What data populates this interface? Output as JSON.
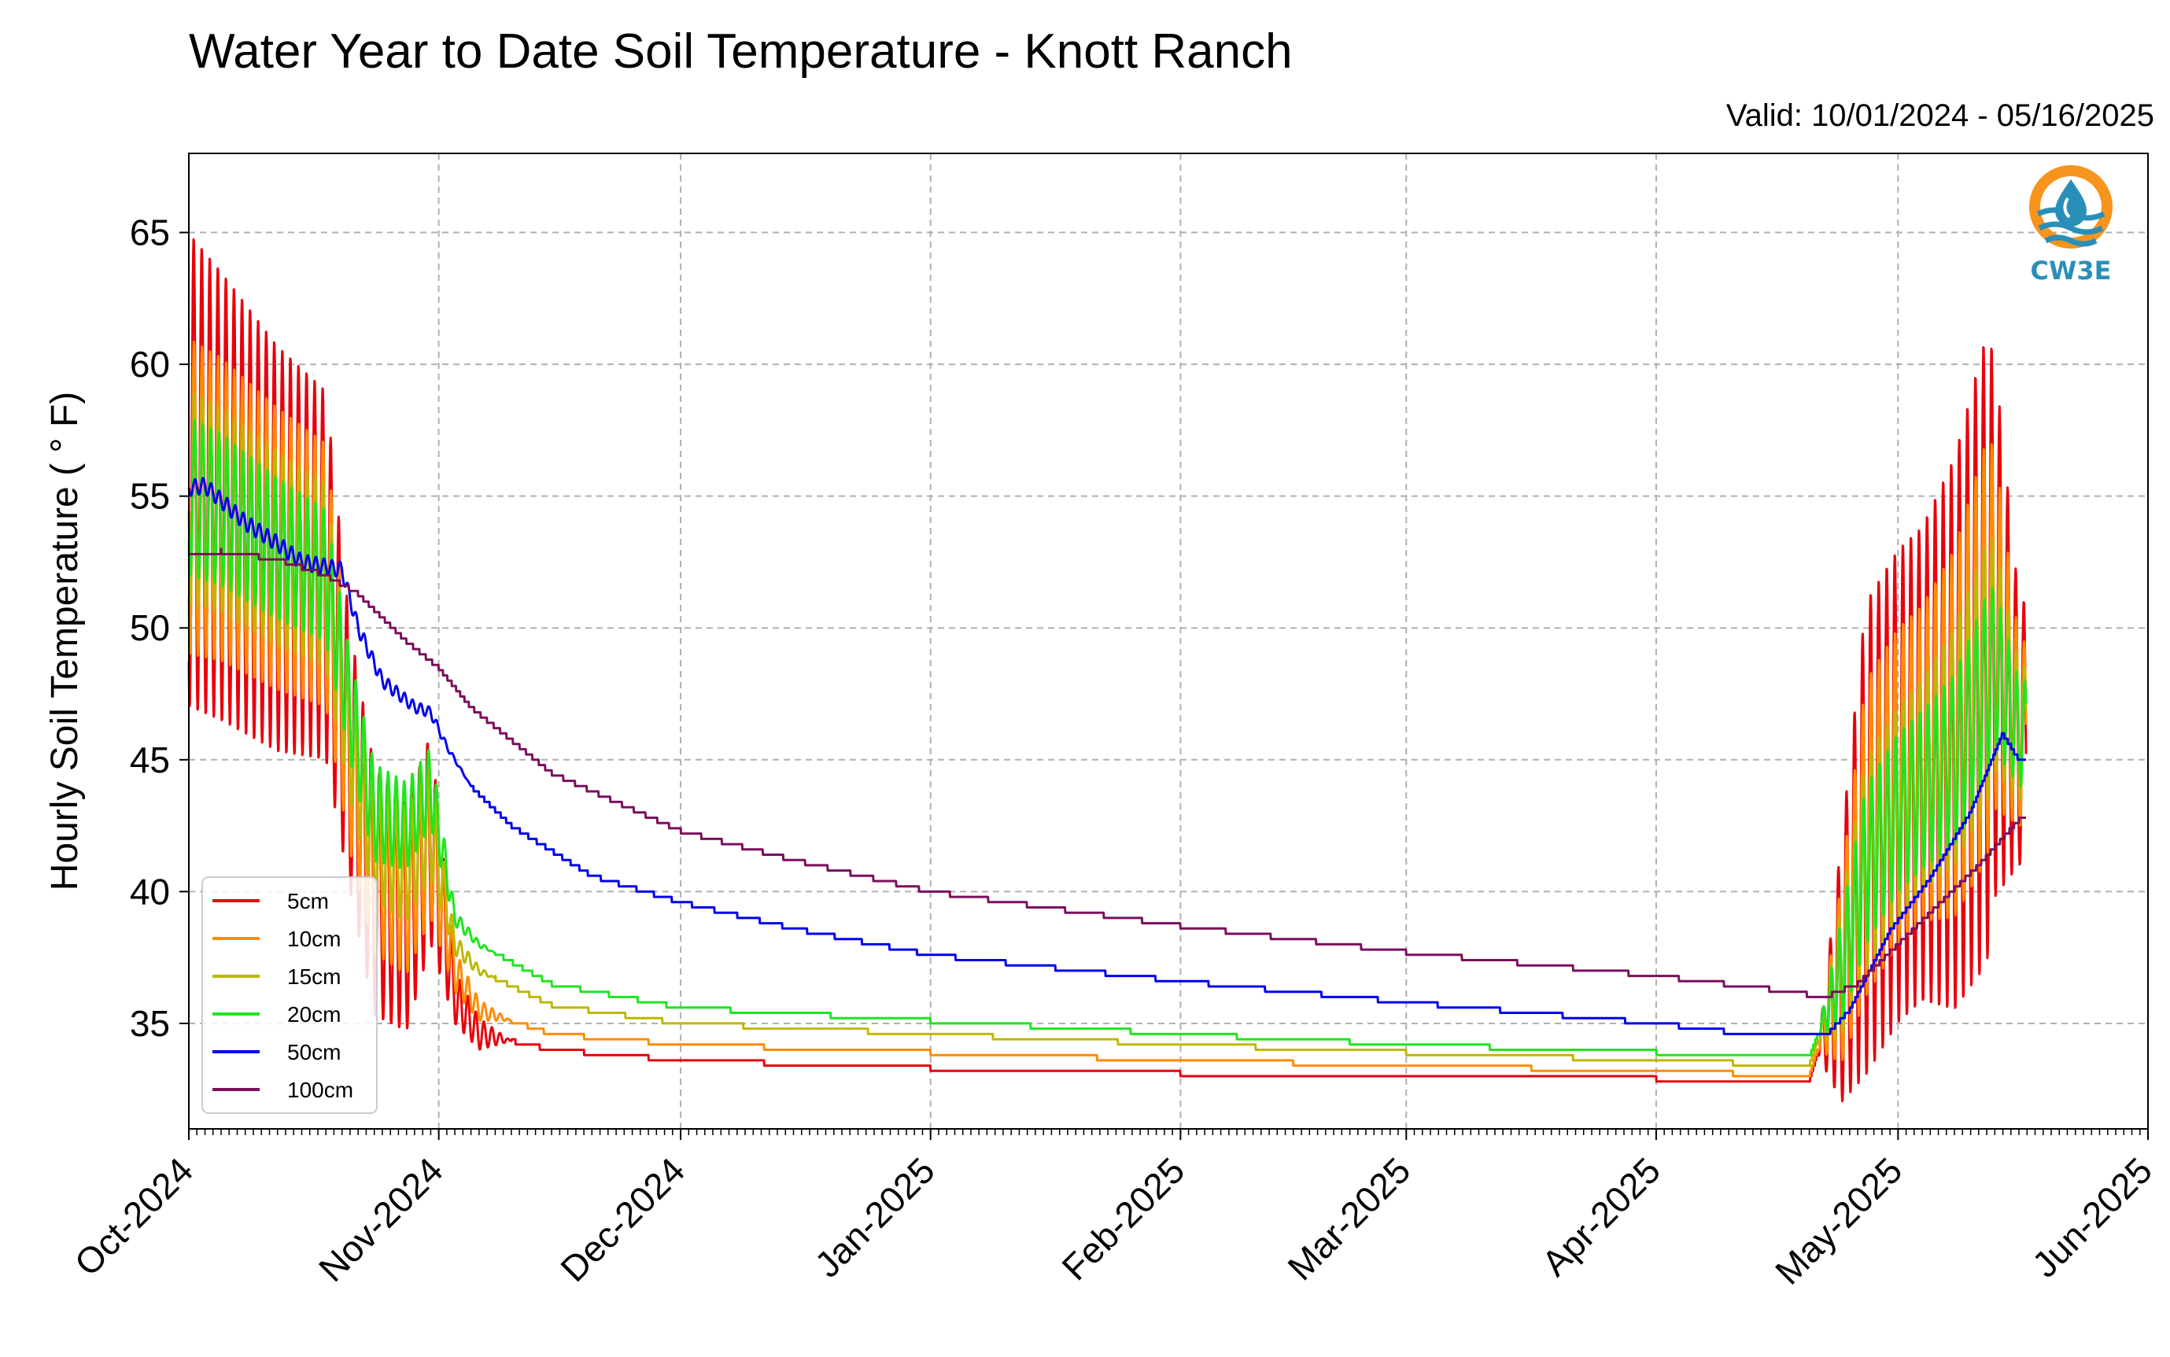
{
  "title": "Water Year to Date Soil Temperature - Knott Ranch",
  "valid_label": "Valid: 10/01/2024 - 05/16/2025",
  "logo": {
    "icon": "water-drop-sun-icon",
    "text": "CW3E",
    "orange": "#f7941d",
    "blue": "#2a8fb8"
  },
  "chart_data": {
    "type": "line",
    "ylabel": "Hourly Soil Temperature ( ° F)",
    "xlabel": "",
    "ylim": [
      31,
      68
    ],
    "y_ticks": [
      35,
      40,
      45,
      50,
      55,
      60,
      65
    ],
    "x_range": [
      "2024-10-01",
      "2025-06-01"
    ],
    "x_ticks": [
      {
        "date": "2024-10-01",
        "label": "Oct-2024"
      },
      {
        "date": "2024-11-01",
        "label": "Nov-2024"
      },
      {
        "date": "2024-12-01",
        "label": "Dec-2024"
      },
      {
        "date": "2025-01-01",
        "label": "Jan-2025"
      },
      {
        "date": "2025-02-01",
        "label": "Feb-2025"
      },
      {
        "date": "2025-03-01",
        "label": "Mar-2025"
      },
      {
        "date": "2025-04-01",
        "label": "Apr-2025"
      },
      {
        "date": "2025-05-01",
        "label": "May-2025"
      },
      {
        "date": "2025-06-01",
        "label": "Jun-2025"
      }
    ],
    "grid": true,
    "legend_position": "lower-left",
    "series": [
      {
        "name": "5cm",
        "color": "#e8000b",
        "mean": [
          [
            "2024-10-01",
            56
          ],
          [
            "2024-10-05",
            55
          ],
          [
            "2024-10-12",
            53
          ],
          [
            "2024-10-18",
            52
          ],
          [
            "2024-10-21",
            45
          ],
          [
            "2024-10-24",
            40
          ],
          [
            "2024-10-28",
            39
          ],
          [
            "2024-10-31",
            42
          ],
          [
            "2024-11-03",
            36
          ],
          [
            "2024-11-06",
            34.6
          ],
          [
            "2024-11-15",
            34.0
          ],
          [
            "2024-12-01",
            33.6
          ],
          [
            "2025-01-01",
            33.3
          ],
          [
            "2025-02-01",
            33.1
          ],
          [
            "2025-03-01",
            33.0
          ],
          [
            "2025-04-01",
            32.9
          ],
          [
            "2025-04-20",
            32.8
          ],
          [
            "2025-04-24",
            37
          ],
          [
            "2025-04-27",
            42
          ],
          [
            "2025-05-01",
            44
          ],
          [
            "2025-05-08",
            46
          ],
          [
            "2025-05-13",
            50
          ],
          [
            "2025-05-16",
            46
          ]
        ],
        "amp": [
          [
            "2024-10-01",
            9
          ],
          [
            "2024-10-18",
            7
          ],
          [
            "2024-10-21",
            5
          ],
          [
            "2024-10-31",
            4
          ],
          [
            "2024-11-03",
            1
          ],
          [
            "2024-11-06",
            0.6
          ],
          [
            "2024-11-10",
            0
          ],
          [
            "2025-04-21",
            0
          ],
          [
            "2025-04-24",
            5
          ],
          [
            "2025-04-27",
            9
          ],
          [
            "2025-05-04",
            9
          ],
          [
            "2025-05-12",
            12
          ],
          [
            "2025-05-16",
            5
          ]
        ]
      },
      {
        "name": "10cm",
        "color": "#ff8c00",
        "mean": [
          [
            "2024-10-01",
            55
          ],
          [
            "2024-10-05",
            54.5
          ],
          [
            "2024-10-12",
            53
          ],
          [
            "2024-10-18",
            52
          ],
          [
            "2024-10-21",
            45
          ],
          [
            "2024-10-24",
            41
          ],
          [
            "2024-10-28",
            40
          ],
          [
            "2024-10-31",
            42
          ],
          [
            "2024-11-03",
            37
          ],
          [
            "2024-11-06",
            35.5
          ],
          [
            "2024-11-15",
            34.6
          ],
          [
            "2024-12-01",
            34.2
          ],
          [
            "2025-01-01",
            33.9
          ],
          [
            "2025-02-01",
            33.6
          ],
          [
            "2025-03-01",
            33.4
          ],
          [
            "2025-04-01",
            33.2
          ],
          [
            "2025-04-20",
            33.0
          ],
          [
            "2025-04-24",
            37
          ],
          [
            "2025-04-27",
            42
          ],
          [
            "2025-05-01",
            44
          ],
          [
            "2025-05-08",
            46
          ],
          [
            "2025-05-13",
            50
          ],
          [
            "2025-05-16",
            46
          ]
        ],
        "amp": [
          [
            "2024-10-01",
            6
          ],
          [
            "2024-10-18",
            5
          ],
          [
            "2024-10-21",
            3.5
          ],
          [
            "2024-10-31",
            3
          ],
          [
            "2024-11-03",
            0.8
          ],
          [
            "2024-11-06",
            0.4
          ],
          [
            "2024-11-10",
            0
          ],
          [
            "2025-04-21",
            0
          ],
          [
            "2025-04-24",
            3.5
          ],
          [
            "2025-04-27",
            6
          ],
          [
            "2025-05-04",
            6
          ],
          [
            "2025-05-12",
            8
          ],
          [
            "2025-05-16",
            3.5
          ]
        ]
      },
      {
        "name": "15cm",
        "color": "#bdb800",
        "mean": [
          [
            "2024-10-01",
            55
          ],
          [
            "2024-10-05",
            54.5
          ],
          [
            "2024-10-12",
            53
          ],
          [
            "2024-10-18",
            52
          ],
          [
            "2024-10-21",
            46
          ],
          [
            "2024-10-24",
            42
          ],
          [
            "2024-10-28",
            41
          ],
          [
            "2024-10-31",
            42.5
          ],
          [
            "2024-11-03",
            38
          ],
          [
            "2024-11-06",
            37
          ],
          [
            "2024-11-15",
            35.7
          ],
          [
            "2024-12-01",
            35.0
          ],
          [
            "2025-01-01",
            34.6
          ],
          [
            "2025-02-01",
            34.2
          ],
          [
            "2025-03-01",
            33.9
          ],
          [
            "2025-04-01",
            33.6
          ],
          [
            "2025-04-20",
            33.4
          ],
          [
            "2025-04-24",
            37
          ],
          [
            "2025-04-27",
            41
          ],
          [
            "2025-05-01",
            43
          ],
          [
            "2025-05-08",
            45.5
          ],
          [
            "2025-05-13",
            49
          ],
          [
            "2025-05-16",
            46
          ]
        ],
        "amp": [
          [
            "2024-10-01",
            4
          ],
          [
            "2024-10-18",
            3.5
          ],
          [
            "2024-10-21",
            2.5
          ],
          [
            "2024-10-31",
            2
          ],
          [
            "2024-11-03",
            0.4
          ],
          [
            "2024-11-08",
            0
          ],
          [
            "2025-04-21",
            0
          ],
          [
            "2025-04-24",
            2.5
          ],
          [
            "2025-04-27",
            4
          ],
          [
            "2025-05-04",
            4
          ],
          [
            "2025-05-12",
            5
          ],
          [
            "2025-05-16",
            2.5
          ]
        ]
      },
      {
        "name": "20cm",
        "color": "#1ee61e",
        "mean": [
          [
            "2024-10-01",
            55
          ],
          [
            "2024-10-05",
            54.5
          ],
          [
            "2024-10-12",
            53
          ],
          [
            "2024-10-18",
            52
          ],
          [
            "2024-10-21",
            47
          ],
          [
            "2024-10-24",
            43
          ],
          [
            "2024-10-28",
            42.5
          ],
          [
            "2024-10-31",
            44
          ],
          [
            "2024-11-03",
            39
          ],
          [
            "2024-11-06",
            38
          ],
          [
            "2024-11-15",
            36.5
          ],
          [
            "2024-12-01",
            35.6
          ],
          [
            "2025-01-01",
            35.1
          ],
          [
            "2025-02-01",
            34.6
          ],
          [
            "2025-03-01",
            34.2
          ],
          [
            "2025-04-01",
            33.9
          ],
          [
            "2025-04-20",
            33.7
          ],
          [
            "2025-04-24",
            37
          ],
          [
            "2025-04-27",
            41
          ],
          [
            "2025-05-01",
            43
          ],
          [
            "2025-05-08",
            45
          ],
          [
            "2025-05-13",
            48.5
          ],
          [
            "2025-05-16",
            46
          ]
        ],
        "amp": [
          [
            "2024-10-01",
            3
          ],
          [
            "2024-10-18",
            2.5
          ],
          [
            "2024-10-21",
            2
          ],
          [
            "2024-10-31",
            1.5
          ],
          [
            "2024-11-03",
            0.3
          ],
          [
            "2024-11-08",
            0
          ],
          [
            "2025-04-21",
            0
          ],
          [
            "2025-04-24",
            2
          ],
          [
            "2025-04-27",
            3
          ],
          [
            "2025-05-04",
            3
          ],
          [
            "2025-05-12",
            3.5
          ],
          [
            "2025-05-16",
            2
          ]
        ]
      },
      {
        "name": "50cm",
        "color": "#0000ee",
        "mean": [
          [
            "2024-10-01",
            55.3
          ],
          [
            "2024-10-03",
            55.4
          ],
          [
            "2024-10-08",
            54
          ],
          [
            "2024-10-12",
            53.2
          ],
          [
            "2024-10-15",
            52.5
          ],
          [
            "2024-10-20",
            52.2
          ],
          [
            "2024-10-22",
            50
          ],
          [
            "2024-10-25",
            48
          ],
          [
            "2024-10-29",
            47
          ],
          [
            "2024-10-31",
            46.8
          ],
          [
            "2024-11-02",
            45.5
          ],
          [
            "2024-11-05",
            44
          ],
          [
            "2024-11-10",
            42.5
          ],
          [
            "2024-11-20",
            40.6
          ],
          [
            "2024-12-01",
            39.6
          ],
          [
            "2024-12-15",
            38.6
          ],
          [
            "2025-01-01",
            37.6
          ],
          [
            "2025-02-01",
            36.6
          ],
          [
            "2025-03-01",
            35.8
          ],
          [
            "2025-04-01",
            35.0
          ],
          [
            "2025-04-15",
            34.5
          ],
          [
            "2025-04-22",
            34.5
          ],
          [
            "2025-04-25",
            35.5
          ],
          [
            "2025-04-30",
            38.5
          ],
          [
            "2025-05-05",
            40.5
          ],
          [
            "2025-05-10",
            43
          ],
          [
            "2025-05-14",
            46
          ],
          [
            "2025-05-16",
            45
          ]
        ],
        "amp": [
          [
            "2024-10-01",
            0.3
          ],
          [
            "2024-10-20",
            0.3
          ],
          [
            "2024-10-31",
            0.2
          ],
          [
            "2024-11-05",
            0
          ],
          [
            "2025-05-16",
            0
          ]
        ]
      },
      {
        "name": "100cm",
        "color": "#7b0f5c",
        "mean": [
          [
            "2024-10-01",
            52.7
          ],
          [
            "2024-10-05",
            52.9
          ],
          [
            "2024-10-12",
            52.6
          ],
          [
            "2024-10-18",
            52
          ],
          [
            "2024-10-22",
            51.3
          ],
          [
            "2024-10-28",
            49.5
          ],
          [
            "2024-11-01",
            48.5
          ],
          [
            "2024-11-05",
            47
          ],
          [
            "2024-11-15",
            44.5
          ],
          [
            "2024-12-01",
            42.3
          ],
          [
            "2024-12-15",
            41.2
          ],
          [
            "2025-01-01",
            40.0
          ],
          [
            "2025-02-01",
            38.7
          ],
          [
            "2025-03-01",
            37.7
          ],
          [
            "2025-04-01",
            36.8
          ],
          [
            "2025-04-15",
            36.3
          ],
          [
            "2025-04-22",
            36.0
          ],
          [
            "2025-04-26",
            36.5
          ],
          [
            "2025-05-01",
            38
          ],
          [
            "2025-05-06",
            39.5
          ],
          [
            "2025-05-11",
            41
          ],
          [
            "2025-05-16",
            42.7
          ]
        ],
        "amp": [
          [
            "2024-10-01",
            0
          ],
          [
            "2025-05-16",
            0
          ]
        ]
      }
    ]
  }
}
